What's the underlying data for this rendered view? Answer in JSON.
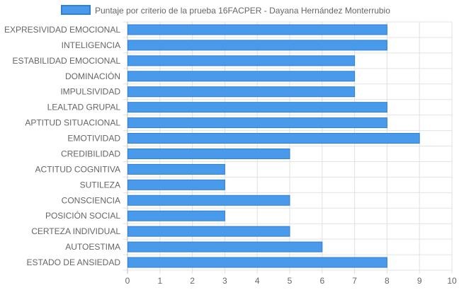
{
  "chart_data": {
    "type": "bar",
    "orientation": "horizontal",
    "categories": [
      "EXPRESIVIDAD EMOCIONAL",
      "INTELIGENCIA",
      "ESTABILIDAD EMOCIONAL",
      "DOMINACIÓN",
      "IMPULSIVIDAD",
      "LEALTAD GRUPAL",
      "APTITUD SITUACIONAL",
      "EMOTIVIDAD",
      "CREDIBILIDAD",
      "ACTITUD COGNITIVA",
      "SUTILEZA",
      "CONSCIENCIA",
      "POSICIÓN SOCIAL",
      "CERTEZA INDIVIDUAL",
      "AUTOESTIMA",
      "ESTADO DE ANSIEDAD"
    ],
    "series": [
      {
        "name": "Puntaje por criterio de la prueba 16FACPER - Dayana Hernández Monterrubio",
        "values": [
          8,
          8,
          7,
          7,
          7,
          8,
          8,
          9,
          5,
          3,
          3,
          5,
          3,
          5,
          6,
          8
        ],
        "color": "#4a9aeb",
        "border_color": "#2e7fd6"
      }
    ],
    "xlim": [
      0,
      10
    ],
    "x_ticks": [
      "0",
      "1",
      "2",
      "3",
      "4",
      "5",
      "6",
      "7",
      "8",
      "9",
      "10"
    ],
    "xlabel": "",
    "ylabel": "",
    "grid": true,
    "legend_position": "top"
  }
}
